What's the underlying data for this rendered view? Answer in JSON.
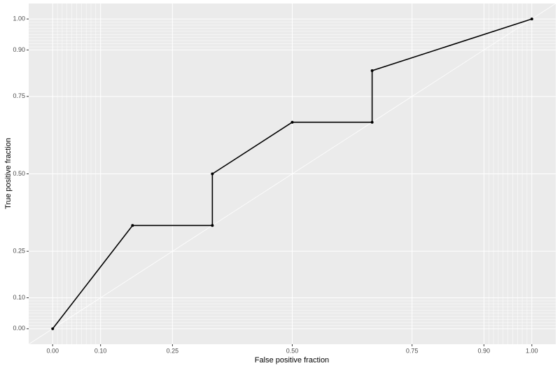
{
  "chart_data": {
    "type": "line",
    "x_label": "False positive fraction",
    "y_label": "True positive fraction",
    "x": [
      0,
      0.1667,
      0.3333,
      0.3333,
      0.5,
      0.6667,
      0.6667,
      1
    ],
    "series": [
      {
        "color": "#000000",
        "values": [
          0,
          0.3333,
          0.3333,
          0.5,
          0.6667,
          0.6667,
          0.8333,
          1
        ]
      }
    ],
    "xlim": [
      -0.05,
      1.05
    ],
    "ylim": [
      -0.05,
      1.05
    ],
    "xticks": [
      {
        "value": 0,
        "label": "0.00"
      },
      {
        "value": 0.1,
        "label": "0.10"
      },
      {
        "value": 0.25,
        "label": "0.25"
      },
      {
        "value": 0.5,
        "label": "0.50"
      },
      {
        "value": 0.75,
        "label": "0.75"
      },
      {
        "value": 0.9,
        "label": "0.90"
      },
      {
        "value": 1,
        "label": "1.00"
      }
    ],
    "yticks": [
      {
        "value": 0,
        "label": "0.00"
      },
      {
        "value": 0.1,
        "label": "0.10"
      },
      {
        "value": 0.25,
        "label": "0.25"
      },
      {
        "value": 0.5,
        "label": "0.50"
      },
      {
        "value": 0.75,
        "label": "0.75"
      },
      {
        "value": 0.9,
        "label": "0.90"
      },
      {
        "value": 1,
        "label": "1.00"
      }
    ],
    "minor_breaks": [
      0.01,
      0.02,
      0.03,
      0.04,
      0.05,
      0.06,
      0.07,
      0.08,
      0.09,
      0.91,
      0.92,
      0.93,
      0.94,
      0.95,
      0.96,
      0.97,
      0.98,
      0.99
    ],
    "grid": true
  }
}
